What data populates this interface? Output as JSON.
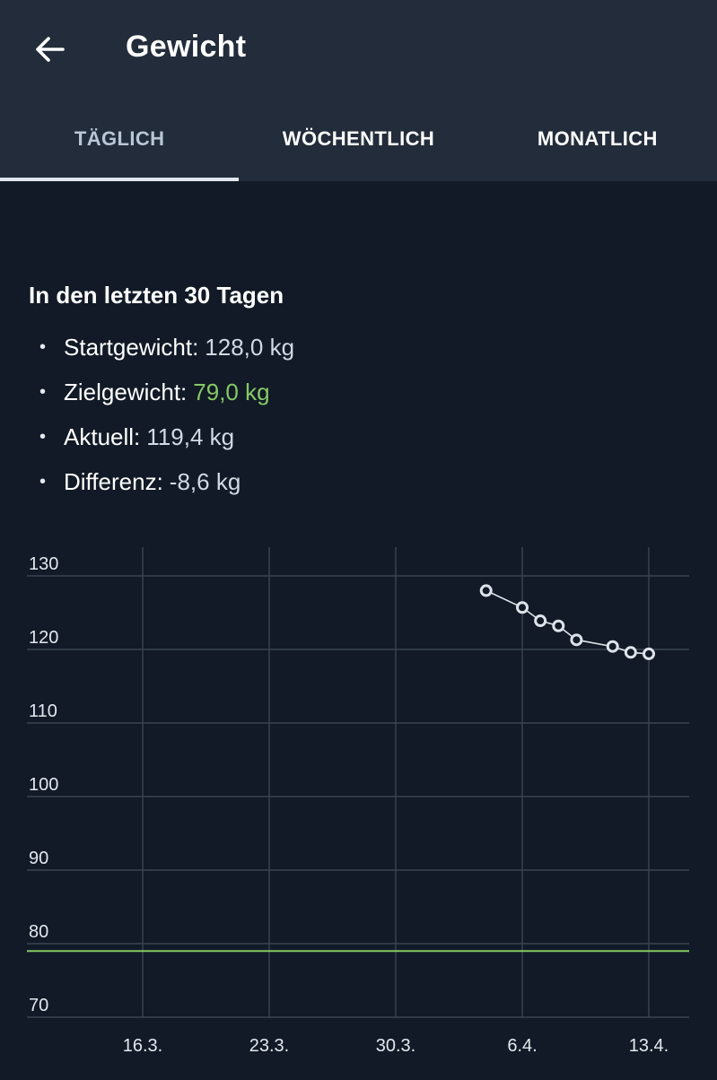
{
  "header": {
    "title": "Gewicht",
    "back_icon": "arrow-left-icon"
  },
  "tabs": [
    {
      "label": "TÄGLICH",
      "active": true
    },
    {
      "label": "WÖCHENTLICH",
      "active": false
    },
    {
      "label": "MONATLICH",
      "active": false
    }
  ],
  "summary": {
    "title": "In den letzten 30 Tagen",
    "items": [
      {
        "label": "Startgewicht:",
        "value": "128,0 kg"
      },
      {
        "label": "Zielgewicht:",
        "value": "79,0 kg"
      },
      {
        "label": "Aktuell:",
        "value": "119,4 kg"
      },
      {
        "label": "Differenz:",
        "value": "-8,6 kg"
      }
    ]
  },
  "colors": {
    "background": "#111a26",
    "appbar": "#222c3a",
    "goal": "#86c866",
    "line": "#dde3ea"
  },
  "chart_data": {
    "type": "line",
    "title": "",
    "xlabel": "",
    "ylabel": "",
    "ylim": [
      70,
      130
    ],
    "y_ticks": [
      "130",
      "120",
      "110",
      "100",
      "90",
      "80",
      "70"
    ],
    "x_ticks": [
      "16.3.",
      "23.3.",
      "30.3.",
      "6.4.",
      "13.4."
    ],
    "grid": true,
    "series": [
      {
        "x": [
          "4.4.",
          "6.4.",
          "7.4.",
          "8.4.",
          "9.4.",
          "11.4.",
          "12.4.",
          "13.4."
        ],
        "values": [
          128.0,
          125.7,
          123.9,
          123.2,
          121.3,
          120.4,
          119.6,
          119.4
        ]
      }
    ],
    "goal_line": 79.0
  }
}
